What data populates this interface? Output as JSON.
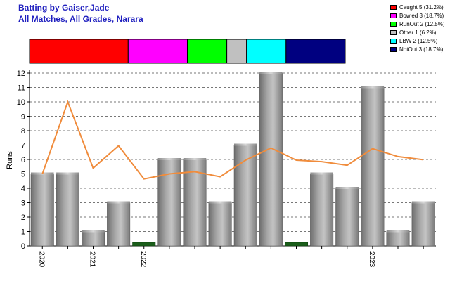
{
  "titles": {
    "line1": "Batting by Gaiser,Jade",
    "line2": "All Matches, All Grades, Narara"
  },
  "legend": [
    {
      "label": "Caught 5 (31.2%)",
      "color": "#ff0000"
    },
    {
      "label": "Bowled 3 (18.7%)",
      "color": "#ff00ff"
    },
    {
      "label": "RunOut 2 (12.5%)",
      "color": "#00ff00"
    },
    {
      "label": "Other 1 (6.2%)",
      "color": "#c0c0c0"
    },
    {
      "label": "LBW 2 (12.5%)",
      "color": "#00ffff"
    },
    {
      "label": "NotOut 3 (18.7%)",
      "color": "#000080"
    }
  ],
  "dismissal_bar": [
    {
      "name": "Caught",
      "value": 5,
      "color": "#ff0000"
    },
    {
      "name": "Bowled",
      "value": 3,
      "color": "#ff00ff"
    },
    {
      "name": "RunOut",
      "value": 2,
      "color": "#00ff00"
    },
    {
      "name": "Other",
      "value": 1,
      "color": "#c0c0c0"
    },
    {
      "name": "LBW",
      "value": 2,
      "color": "#00ffff"
    },
    {
      "name": "NotOut",
      "value": 3,
      "color": "#000080"
    }
  ],
  "chart_data": {
    "type": "bar",
    "ylabel": "Runs",
    "ylim": [
      0,
      12
    ],
    "yticks": [
      0,
      1,
      2,
      3,
      4,
      5,
      6,
      7,
      8,
      9,
      10,
      11,
      12
    ],
    "grid": true,
    "values": [
      5,
      5,
      1,
      3,
      0,
      6,
      6,
      3,
      7,
      12,
      0,
      5,
      4,
      11,
      1,
      3
    ],
    "duck_bars": [
      4,
      10
    ],
    "average_line": [
      5,
      10,
      5.4,
      6.95,
      4.65,
      5.0,
      5.15,
      4.8,
      5.95,
      6.8,
      5.95,
      5.85,
      5.6,
      6.75,
      6.2,
      5.98
    ],
    "year_ticks": [
      {
        "label": "2020",
        "index": 0
      },
      {
        "label": "2021",
        "index": 2
      },
      {
        "label": "2022",
        "index": 4
      },
      {
        "label": "2023",
        "index": 13
      }
    ],
    "colors": {
      "bar": "#999999",
      "duck": "#1a5e1a",
      "line": "#f08c3c",
      "grid": "#777777"
    }
  }
}
